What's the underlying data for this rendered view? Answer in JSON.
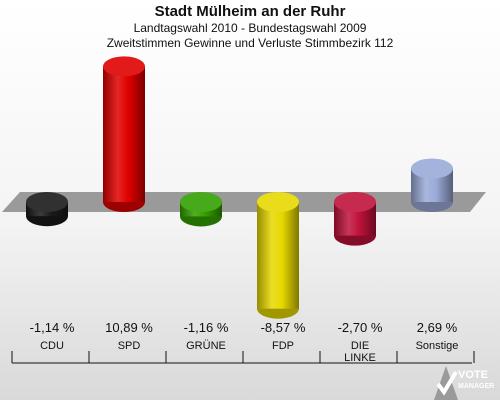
{
  "header": {
    "title": "Stadt Mülheim an der Ruhr",
    "subtitle1": "Landtagswahl 2010 - Bundestagswahl 2009",
    "subtitle2": "Zweitstimmen Gewinne und Verluste Stimmbezirk 112"
  },
  "chart_data": {
    "type": "bar",
    "title": "Stadt Mülheim an der Ruhr",
    "subtitle": "Landtagswahl 2010 - Bundestagswahl 2009 / Zweitstimmen Gewinne und Verluste Stimmbezirk 112",
    "categories": [
      "CDU",
      "SPD",
      "GRÜNE",
      "FDP",
      "DIE LINKE",
      "Sonstige"
    ],
    "category_lines": [
      [
        "CDU"
      ],
      [
        "SPD"
      ],
      [
        "GRÜNE"
      ],
      [
        "FDP"
      ],
      [
        "DIE",
        "LINKE"
      ],
      [
        "Sonstige"
      ]
    ],
    "values": [
      -1.14,
      10.89,
      -1.16,
      -8.57,
      -2.7,
      2.69
    ],
    "value_labels": [
      "-1,14 %",
      "10,89 %",
      "-1,16 %",
      "-8,57 %",
      "-2,70 %",
      "2,69 %"
    ],
    "colors": [
      "#1a1a1a",
      "#e00000",
      "#33a000",
      "#e6d800",
      "#c0123a",
      "#9aaad8"
    ],
    "ylim": [
      -11,
      11
    ],
    "grid": false,
    "legend": "none"
  },
  "logo": {
    "line1": "VOTE",
    "line2": "MANAGER"
  }
}
